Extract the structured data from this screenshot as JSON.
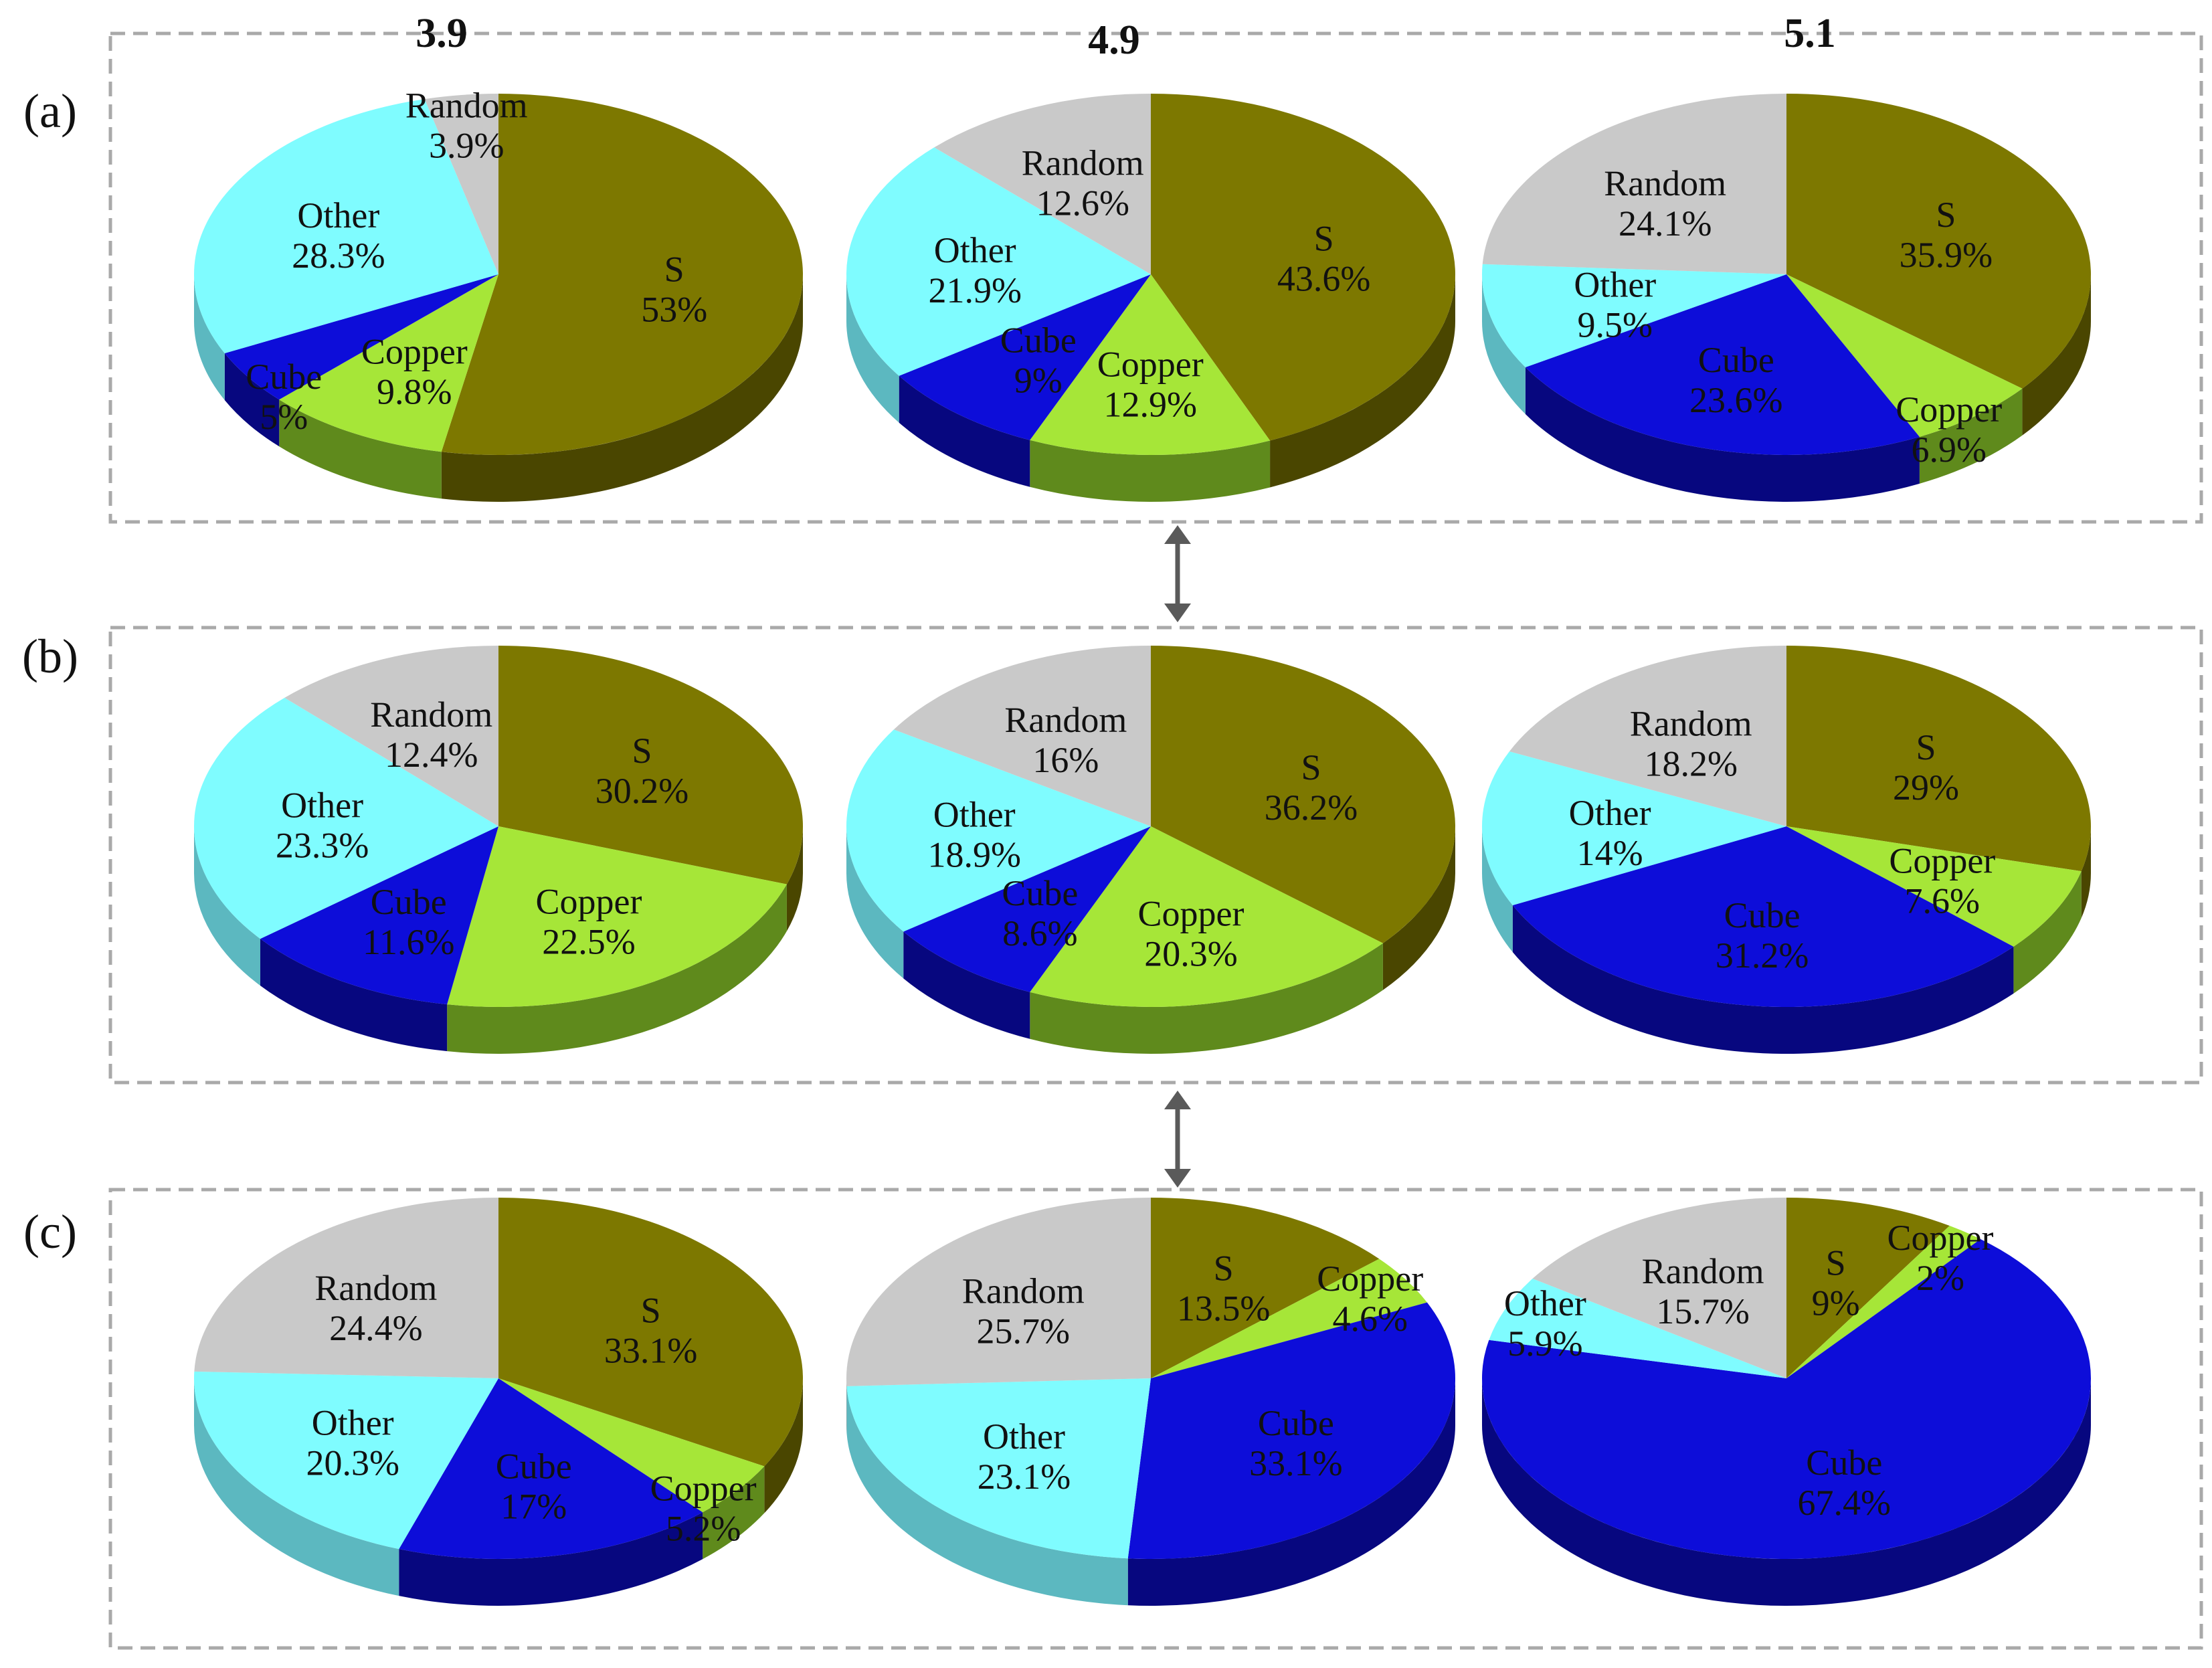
{
  "chart_data": {
    "type": "pie",
    "title": "",
    "column_titles": [
      "3.9",
      "4.9",
      "5.1"
    ],
    "row_labels": [
      "(a)",
      "(b)",
      "(c)"
    ],
    "categories": [
      "S",
      "Copper",
      "Cube",
      "Other",
      "Random"
    ],
    "colors": {
      "S": "#7d7800",
      "Copper": "#a6e638",
      "Cube": "#0d0dd9",
      "Other": "#7ffcff",
      "Random": "#c9c9c9"
    },
    "side_colors": {
      "S": "#4a4600",
      "Copper": "#5f8a1c",
      "Cube": "#07077f",
      "Other": "#5cb8c0",
      "Random": "#8f8f8f"
    },
    "panels": [
      {
        "row": "(a)",
        "column": "3.9",
        "slices": [
          {
            "name": "S",
            "value": 53,
            "label": "53%"
          },
          {
            "name": "Copper",
            "value": 9.8,
            "label": "9.8%"
          },
          {
            "name": "Cube",
            "value": 5,
            "label": "5%"
          },
          {
            "name": "Other",
            "value": 28.3,
            "label": "28.3%"
          },
          {
            "name": "Random",
            "value": 3.9,
            "label": "3.9%"
          }
        ]
      },
      {
        "row": "(a)",
        "column": "4.9",
        "slices": [
          {
            "name": "S",
            "value": 43.6,
            "label": "43.6%"
          },
          {
            "name": "Copper",
            "value": 12.9,
            "label": "12.9%"
          },
          {
            "name": "Cube",
            "value": 9,
            "label": "9%"
          },
          {
            "name": "Other",
            "value": 21.9,
            "label": "21.9%"
          },
          {
            "name": "Random",
            "value": 12.6,
            "label": "12.6%"
          }
        ]
      },
      {
        "row": "(a)",
        "column": "5.1",
        "slices": [
          {
            "name": "S",
            "value": 35.9,
            "label": "35.9%"
          },
          {
            "name": "Copper",
            "value": 6.9,
            "label": "6.9%"
          },
          {
            "name": "Cube",
            "value": 23.6,
            "label": "23.6%"
          },
          {
            "name": "Other",
            "value": 9.5,
            "label": "9.5%"
          },
          {
            "name": "Random",
            "value": 24.1,
            "label": "24.1%"
          }
        ]
      },
      {
        "row": "(b)",
        "column": "3.9",
        "slices": [
          {
            "name": "S",
            "value": 30.2,
            "label": "30.2%"
          },
          {
            "name": "Copper",
            "value": 22.5,
            "label": "22.5%"
          },
          {
            "name": "Cube",
            "value": 11.6,
            "label": "11.6%"
          },
          {
            "name": "Other",
            "value": 23.3,
            "label": "23.3%"
          },
          {
            "name": "Random",
            "value": 12.4,
            "label": "12.4%"
          }
        ]
      },
      {
        "row": "(b)",
        "column": "4.9",
        "slices": [
          {
            "name": "S",
            "value": 36.2,
            "label": "36.2%"
          },
          {
            "name": "Copper",
            "value": 20.3,
            "label": "20.3%"
          },
          {
            "name": "Cube",
            "value": 8.6,
            "label": "8.6%"
          },
          {
            "name": "Other",
            "value": 18.9,
            "label": "18.9%"
          },
          {
            "name": "Random",
            "value": 16,
            "label": "16%"
          }
        ]
      },
      {
        "row": "(b)",
        "column": "5.1",
        "slices": [
          {
            "name": "S",
            "value": 29,
            "label": "29%"
          },
          {
            "name": "Copper",
            "value": 7.6,
            "label": "7.6%"
          },
          {
            "name": "Cube",
            "value": 31.2,
            "label": "31.2%"
          },
          {
            "name": "Other",
            "value": 14,
            "label": "14%"
          },
          {
            "name": "Random",
            "value": 18.2,
            "label": "18.2%"
          }
        ]
      },
      {
        "row": "(c)",
        "column": "3.9",
        "slices": [
          {
            "name": "S",
            "value": 33.1,
            "label": "33.1%"
          },
          {
            "name": "Copper",
            "value": 5.2,
            "label": "5.2%"
          },
          {
            "name": "Cube",
            "value": 17,
            "label": "17%"
          },
          {
            "name": "Other",
            "value": 20.3,
            "label": "20.3%"
          },
          {
            "name": "Random",
            "value": 24.4,
            "label": "24.4%"
          }
        ]
      },
      {
        "row": "(c)",
        "column": "4.9",
        "slices": [
          {
            "name": "S",
            "value": 13.5,
            "label": "13.5%"
          },
          {
            "name": "Copper",
            "value": 4.6,
            "label": "4.6%"
          },
          {
            "name": "Cube",
            "value": 33.1,
            "label": "33.1%"
          },
          {
            "name": "Other",
            "value": 23.1,
            "label": "23.1%"
          },
          {
            "name": "Random",
            "value": 25.7,
            "label": "25.7%"
          }
        ]
      },
      {
        "row": "(c)",
        "column": "5.1",
        "slices": [
          {
            "name": "S",
            "value": 9,
            "label": "9%"
          },
          {
            "name": "Copper",
            "value": 2,
            "label": "2%"
          },
          {
            "name": "Cube",
            "value": 67.4,
            "label": "67.4%"
          },
          {
            "name": "Other",
            "value": 5.9,
            "label": "5.9%"
          },
          {
            "name": "Random",
            "value": 15.7,
            "label": "15.7%"
          }
        ]
      }
    ]
  }
}
